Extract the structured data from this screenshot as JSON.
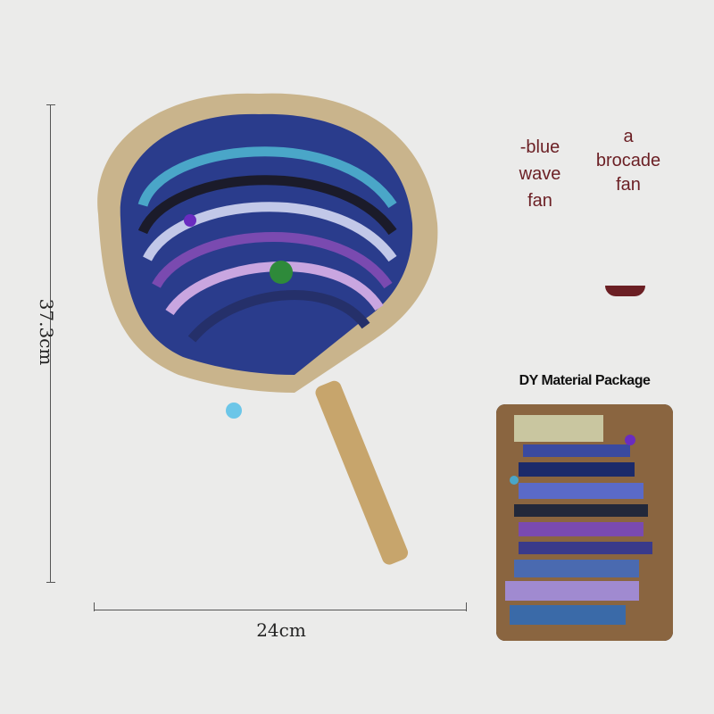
{
  "dimensions": {
    "height": "37.3cm",
    "width": "24cm"
  },
  "variants": [
    {
      "lines": [
        "-blue",
        "wave",
        "fan"
      ]
    },
    {
      "lines": [
        "a",
        "brocade",
        "fan"
      ]
    }
  ],
  "package": {
    "title": "DY Material Package"
  },
  "colors": {
    "accent": "#6b1f24",
    "background": "#ebebea",
    "fringe": "#c9b48c",
    "bamboo": "#c7a56c"
  }
}
